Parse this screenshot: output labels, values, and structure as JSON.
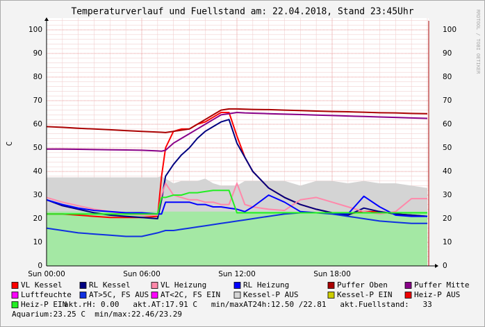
{
  "chart_data": {
    "type": "line",
    "title": "Temperaturverlauf und Fuellstand am: 22.04.2018, Stand 23:45Uhr",
    "y_label": "C",
    "watermark": "RRDTOOL / TOBI OETIKER",
    "x": [
      0,
      1,
      2,
      3,
      4,
      5,
      6,
      7,
      7.25,
      7.5,
      8,
      8.5,
      9,
      9.5,
      10,
      10.5,
      11,
      11.5,
      12,
      12.5,
      13,
      14,
      15,
      16,
      17,
      18,
      19,
      20,
      21,
      22,
      23,
      24
    ],
    "xlim": [
      0,
      24
    ],
    "xticks": [
      {
        "value": 0,
        "label": "Sun 00:00"
      },
      {
        "value": 6,
        "label": "Sun 06:00"
      },
      {
        "value": 12,
        "label": "Sun 12:00"
      },
      {
        "value": 18,
        "label": "Sun 18:00"
      }
    ],
    "ylim": [
      0,
      105
    ],
    "yticks": [
      0,
      10,
      20,
      30,
      40,
      50,
      60,
      70,
      80,
      90,
      100
    ],
    "minor_grid": {
      "x": 1,
      "y": 2
    },
    "grid": true,
    "series": [
      {
        "name": "VL Kessel",
        "color": "#ff0000",
        "values": [
          22,
          22,
          21.5,
          21,
          20.5,
          20.5,
          20.5,
          21,
          38,
          50,
          57,
          58,
          58,
          60,
          61,
          63,
          65,
          65,
          55,
          46,
          40,
          33,
          29,
          26,
          24,
          22.5,
          22,
          23,
          23,
          22,
          21.5,
          21
        ]
      },
      {
        "name": "RL Kessel",
        "color": "#000080",
        "values": [
          28,
          25.5,
          24,
          22.5,
          21.5,
          21,
          20.5,
          20,
          28,
          38,
          43,
          47,
          50,
          54,
          57,
          59,
          61,
          62,
          52,
          46,
          40,
          33,
          29,
          26,
          24,
          22.5,
          21.5,
          24.5,
          23,
          22,
          21.5,
          21
        ]
      },
      {
        "name": "VL Heizung",
        "color": "#ff88aa",
        "values": [
          29,
          27,
          25.5,
          24,
          23,
          22,
          21.5,
          21.5,
          30,
          35,
          30,
          29,
          28,
          28,
          27,
          27,
          26,
          26,
          35,
          26,
          25,
          24,
          23.5,
          28,
          29,
          27,
          25,
          23,
          22,
          23,
          28.5,
          28.5
        ]
      },
      {
        "name": "RL Heizung",
        "color": "#0000ff",
        "values": [
          28,
          26,
          24.5,
          23.5,
          23,
          22.5,
          22.5,
          22,
          22,
          27,
          27,
          27,
          27,
          26,
          26,
          25,
          25,
          24.5,
          24,
          23,
          25,
          30,
          27,
          23,
          22.5,
          22.5,
          22,
          29.5,
          25,
          21.5,
          21,
          21
        ]
      },
      {
        "name": "Puffer Oben",
        "color": "#aa0000",
        "values": [
          59,
          58.7,
          58.3,
          58,
          57.7,
          57.3,
          57,
          56.7,
          56.6,
          56.5,
          57,
          57.5,
          58,
          60,
          62,
          64,
          66,
          66.5,
          66.5,
          66.4,
          66.3,
          66.2,
          66,
          65.8,
          65.6,
          65.4,
          65.3,
          65.1,
          64.9,
          64.8,
          64.6,
          64.5
        ]
      },
      {
        "name": "Puffer Mitte",
        "color": "#880088",
        "values": [
          49.5,
          49.5,
          49.4,
          49.3,
          49.2,
          49.1,
          49,
          48.7,
          48.6,
          49,
          52,
          54,
          56,
          58,
          60,
          62,
          64,
          64.5,
          65,
          64.8,
          64.7,
          64.5,
          64.3,
          64.1,
          63.9,
          63.7,
          63.5,
          63.3,
          63.1,
          62.9,
          62.7,
          62.5
        ]
      },
      {
        "name": "Luftfeuchte",
        "color": "#ff00ff",
        "values": [
          null,
          null,
          null,
          null,
          null,
          null,
          null,
          null,
          null,
          null,
          null,
          null,
          null,
          null,
          null,
          null,
          null,
          null,
          null,
          null,
          null,
          null,
          null,
          null,
          null,
          null,
          null,
          null,
          null,
          null,
          null,
          null
        ]
      },
      {
        "name": "AT>5C, FS AUS",
        "color": "#1030e0",
        "values": [
          16,
          15,
          14,
          13.5,
          13,
          12.5,
          12.5,
          14,
          14.5,
          15,
          15,
          15.5,
          16,
          16.5,
          17,
          17.5,
          18,
          18.5,
          19,
          19.5,
          20,
          21,
          22,
          22.5,
          22.5,
          22,
          21,
          20,
          19,
          18.5,
          18,
          18
        ]
      },
      {
        "name": "AT<2C, FS EIN",
        "color": "#ff00ff",
        "values": [
          null,
          null,
          null,
          null,
          null,
          null,
          null,
          null,
          null,
          null,
          null,
          null,
          null,
          null,
          null,
          null,
          null,
          null,
          null,
          null,
          null,
          null,
          null,
          null,
          null,
          null,
          null,
          null,
          null,
          null,
          null,
          null
        ]
      },
      {
        "name": "Kessel-P AUS",
        "color": "#d4d4d4",
        "kind": "area",
        "values": [
          37.5,
          37.5,
          37.5,
          37.5,
          37.5,
          37.5,
          37.5,
          37.5,
          38,
          37,
          35,
          36,
          36,
          36,
          37,
          35,
          34,
          34,
          34,
          36,
          36,
          36,
          36,
          34,
          36,
          36,
          35,
          36,
          35,
          35,
          34,
          33
        ]
      },
      {
        "name": "Kessel-P EIN",
        "color": "#cccc00",
        "values": [
          null,
          null,
          null,
          null,
          null,
          null,
          null,
          null,
          null,
          null,
          null,
          null,
          null,
          null,
          null,
          null,
          null,
          null,
          null,
          null,
          null,
          null,
          null,
          null,
          null,
          null,
          null,
          null,
          null,
          null,
          null,
          null
        ]
      },
      {
        "name": "Heiz-P AUS",
        "color": "#ee0000",
        "values": [
          null,
          null,
          null,
          null,
          null,
          null,
          null,
          null,
          null,
          null,
          null,
          null,
          null,
          null,
          null,
          null,
          null,
          null,
          null,
          null,
          null,
          null,
          null,
          null,
          null,
          null,
          null,
          null,
          null,
          null,
          null,
          null
        ]
      },
      {
        "name": "Heiz-P EIN",
        "color": "#22ee22",
        "values": [
          22,
          22,
          22,
          22,
          22,
          22,
          22,
          22,
          29,
          29,
          30,
          30,
          31,
          31,
          31.5,
          32,
          32,
          32,
          22.5,
          22.5,
          22.5,
          22.5,
          22.5,
          22.5,
          22.5,
          22.5,
          22.5,
          22.5,
          22.5,
          22.5,
          22.5,
          22.5
        ]
      },
      {
        "color": "#a4e8a4",
        "kind": "area",
        "values": [
          23,
          23,
          23,
          23,
          23,
          23,
          23,
          23,
          23,
          23,
          23,
          23,
          23,
          23,
          23,
          23,
          23,
          23,
          23,
          23,
          23,
          23,
          23,
          23,
          23,
          23,
          23,
          23,
          23,
          23,
          23,
          23
        ]
      }
    ],
    "footer_lines": [
      "akt.rH: 0.00   akt.AT:17.91 C   min/maxAT24h:12.50 /22.81   akt.Fuellstand:   33",
      "Aquarium:23.25 C  min/max:22.46/23.29"
    ]
  }
}
